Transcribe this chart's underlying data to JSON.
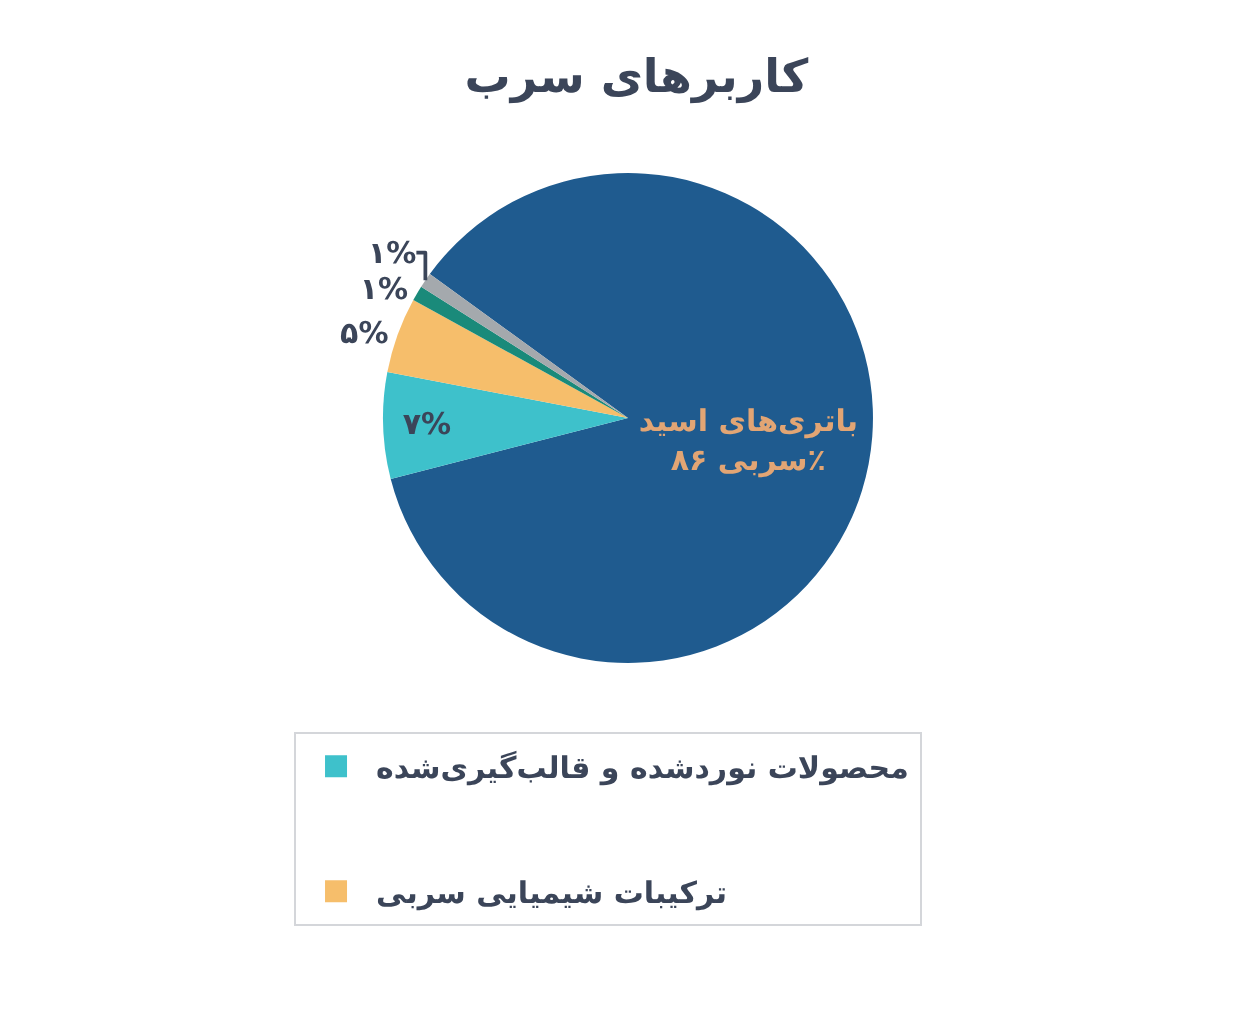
{
  "chart_data": {
    "type": "pie",
    "title": "کاربرهای سرب",
    "categories": [
      null,
      "محصولات نوردشده و قالب‌گیری‌شده",
      "ترکیبات شیمیایی سربی",
      null,
      null
    ],
    "values": [
      86,
      7,
      5,
      1,
      1
    ],
    "colors": [
      "#1f5b8f",
      "#3ec1cb",
      "#f6be6b",
      "#1a8a7a",
      "#a4a9ad"
    ],
    "value_labels": [
      "باتری‌های اسید سربی ۸۶٪",
      "۷%",
      "۵%",
      "۱%",
      "۱%"
    ],
    "legend": "bottom"
  }
}
